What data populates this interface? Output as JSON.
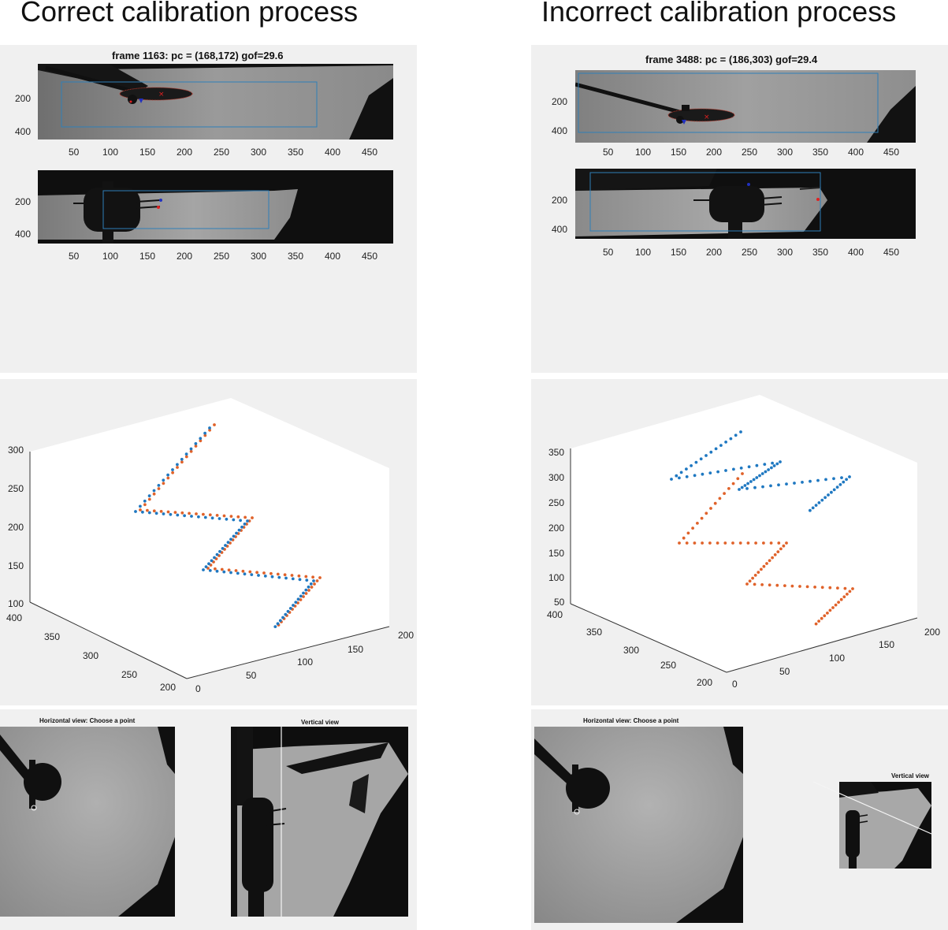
{
  "headings": {
    "left": "Correct calibration process",
    "right": "Incorrect calibration process"
  },
  "colors": {
    "panel_bg": "#f0f0f0",
    "series_blue": "#1f78c1",
    "series_orange": "#e0622a",
    "roi_box": "#2f7fb8"
  },
  "frames": {
    "left": {
      "title": "frame 1163: pc = (168,172) gof=29.6",
      "x_ticks": [
        "50",
        "100",
        "150",
        "200",
        "250",
        "300",
        "350",
        "400",
        "450"
      ],
      "top_y_ticks": [
        "200",
        "400"
      ],
      "bottom_y_ticks": [
        "200",
        "400"
      ]
    },
    "right": {
      "title": "frame 3488: pc = (186,303) gof=29.4",
      "x_ticks": [
        "50",
        "100",
        "150",
        "200",
        "250",
        "300",
        "350",
        "400",
        "450"
      ],
      "top_y_ticks": [
        "200",
        "400"
      ],
      "bottom_y_ticks": [
        "200",
        "400"
      ]
    }
  },
  "plots3d": {
    "left": {
      "z_ticks": [
        "300",
        "250",
        "200",
        "150",
        "100"
      ],
      "y_ticks": [
        "400",
        "350",
        "300",
        "250",
        "200"
      ],
      "x_ticks": [
        "0",
        "50",
        "100",
        "150",
        "200"
      ]
    },
    "right": {
      "z_ticks": [
        "350",
        "300",
        "250",
        "200",
        "150",
        "100",
        "50"
      ],
      "y_ticks": [
        "400",
        "350",
        "300",
        "250",
        "200"
      ],
      "x_ticks": [
        "0",
        "50",
        "100",
        "150",
        "200"
      ]
    }
  },
  "views": {
    "left": {
      "horizontal_title": "Horizontal view: Choose a point",
      "vertical_title": "Vertical view"
    },
    "right": {
      "horizontal_title": "Horizontal view: Choose a point",
      "vertical_title": "Vertical view"
    }
  }
}
